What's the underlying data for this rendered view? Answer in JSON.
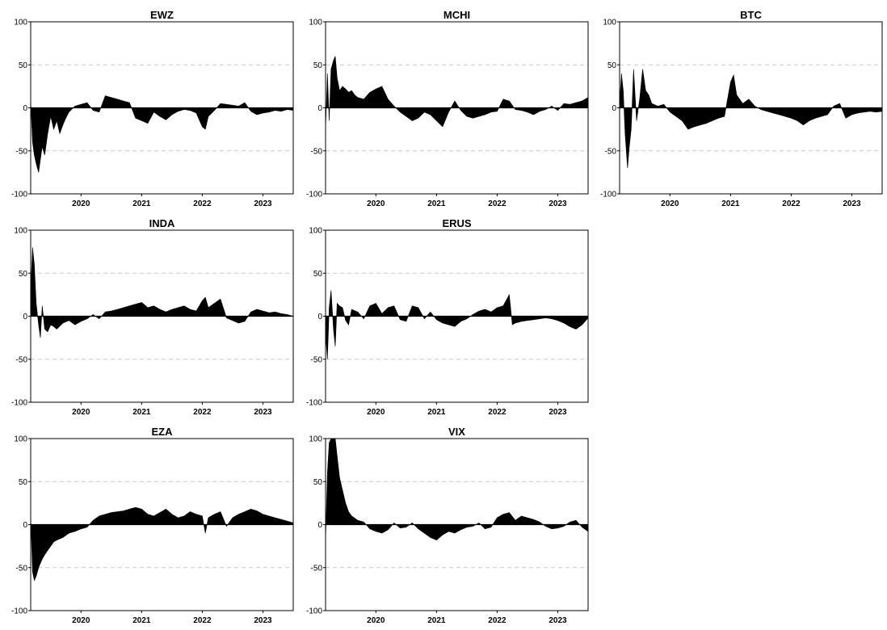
{
  "chart_data": [
    {
      "type": "area",
      "title": "EWZ",
      "ylim": [
        -100,
        100
      ],
      "yticks": [
        "100",
        "50",
        "0",
        "-50",
        "-100"
      ],
      "xticks": [
        "2020",
        "2021",
        "2022",
        "2023"
      ],
      "xrange": [
        2019.17,
        2023.5
      ],
      "grid": "dashed horizontal at ±50",
      "x": [
        2019.17,
        2019.2,
        2019.23,
        2019.26,
        2019.3,
        2019.33,
        2019.36,
        2019.4,
        2019.45,
        2019.5,
        2019.55,
        2019.6,
        2019.65,
        2019.7,
        2019.75,
        2019.8,
        2019.9,
        2020.0,
        2020.1,
        2020.2,
        2020.3,
        2020.4,
        2020.5,
        2020.6,
        2020.7,
        2020.8,
        2020.9,
        2021.0,
        2021.1,
        2021.2,
        2021.3,
        2021.4,
        2021.5,
        2021.6,
        2021.7,
        2021.8,
        2021.9,
        2022.0,
        2022.05,
        2022.1,
        2022.2,
        2022.3,
        2022.4,
        2022.5,
        2022.6,
        2022.7,
        2022.8,
        2022.9,
        2023.0,
        2023.1,
        2023.2,
        2023.3,
        2023.4,
        2023.5
      ],
      "y": [
        8,
        -40,
        -55,
        -65,
        -75,
        -60,
        -45,
        -55,
        -30,
        -10,
        -25,
        -15,
        -30,
        -20,
        -12,
        -5,
        2,
        4,
        6,
        -3,
        -5,
        14,
        12,
        10,
        8,
        6,
        -12,
        -15,
        -18,
        -5,
        -10,
        -14,
        -8,
        -4,
        -2,
        -3,
        -6,
        -22,
        -25,
        -10,
        -3,
        5,
        4,
        3,
        2,
        6,
        -4,
        -8,
        -6,
        -5,
        -3,
        -4,
        -2,
        -3
      ]
    },
    {
      "type": "area",
      "title": "MCHI",
      "ylim": [
        -100,
        100
      ],
      "yticks": [
        "100",
        "50",
        "0",
        "-50",
        "-100"
      ],
      "xticks": [
        "2020",
        "2021",
        "2022",
        "2023"
      ],
      "xrange": [
        2019.17,
        2023.5
      ],
      "grid": "dashed horizontal at ±50",
      "x": [
        2019.17,
        2019.2,
        2019.23,
        2019.26,
        2019.3,
        2019.33,
        2019.36,
        2019.4,
        2019.45,
        2019.5,
        2019.55,
        2019.6,
        2019.65,
        2019.7,
        2019.8,
        2019.9,
        2020.0,
        2020.1,
        2020.2,
        2020.3,
        2020.4,
        2020.5,
        2020.6,
        2020.7,
        2020.8,
        2020.9,
        2021.0,
        2021.1,
        2021.2,
        2021.3,
        2021.4,
        2021.5,
        2021.6,
        2021.7,
        2021.8,
        2021.9,
        2022.0,
        2022.1,
        2022.2,
        2022.3,
        2022.4,
        2022.5,
        2022.6,
        2022.7,
        2022.8,
        2022.9,
        2023.0,
        2023.1,
        2023.2,
        2023.3,
        2023.4,
        2023.5
      ],
      "y": [
        -25,
        40,
        -15,
        45,
        55,
        60,
        35,
        20,
        25,
        22,
        18,
        20,
        15,
        12,
        10,
        18,
        22,
        25,
        10,
        2,
        -5,
        -10,
        -15,
        -12,
        -5,
        -8,
        -15,
        -22,
        -5,
        8,
        -3,
        -10,
        -12,
        -10,
        -8,
        -5,
        -4,
        10,
        8,
        -2,
        -3,
        -5,
        -8,
        -4,
        -2,
        2,
        -3,
        5,
        4,
        6,
        8,
        12
      ]
    },
    {
      "type": "area",
      "title": "BTC",
      "ylim": [
        -100,
        100
      ],
      "yticks": [
        "100",
        "50",
        "0",
        "-50",
        "-100"
      ],
      "xticks": [
        "2020",
        "2021",
        "2022",
        "2023"
      ],
      "xrange": [
        2019.17,
        2023.5
      ],
      "grid": "dashed horizontal at ±50",
      "x": [
        2019.17,
        2019.2,
        2019.23,
        2019.26,
        2019.3,
        2019.33,
        2019.36,
        2019.4,
        2019.45,
        2019.5,
        2019.55,
        2019.6,
        2019.65,
        2019.7,
        2019.8,
        2019.9,
        2020.0,
        2020.1,
        2020.2,
        2020.3,
        2020.4,
        2020.5,
        2020.6,
        2020.7,
        2020.8,
        2020.9,
        2021.0,
        2021.05,
        2021.1,
        2021.2,
        2021.3,
        2021.4,
        2021.5,
        2021.6,
        2021.7,
        2021.8,
        2021.9,
        2022.0,
        2022.1,
        2022.2,
        2022.3,
        2022.4,
        2022.5,
        2022.6,
        2022.7,
        2022.8,
        2022.9,
        2023.0,
        2023.1,
        2023.2,
        2023.3,
        2023.4,
        2023.5
      ],
      "y": [
        5,
        40,
        20,
        -30,
        -70,
        -45,
        -25,
        45,
        -15,
        10,
        45,
        20,
        15,
        5,
        2,
        4,
        -5,
        -10,
        -15,
        -25,
        -22,
        -20,
        -18,
        -15,
        -12,
        -10,
        30,
        38,
        15,
        5,
        10,
        2,
        -2,
        -4,
        -6,
        -8,
        -10,
        -12,
        -15,
        -20,
        -15,
        -12,
        -10,
        -8,
        2,
        5,
        -12,
        -8,
        -6,
        -5,
        -4,
        -5,
        -4
      ]
    },
    {
      "type": "area",
      "title": "INDA",
      "ylim": [
        -100,
        100
      ],
      "yticks": [
        "100",
        "50",
        "0",
        "-50",
        "-100"
      ],
      "xticks": [
        "2020",
        "2021",
        "2022",
        "2023"
      ],
      "xrange": [
        2019.17,
        2023.5
      ],
      "grid": "dashed horizontal at ±50",
      "x": [
        2019.17,
        2019.2,
        2019.23,
        2019.26,
        2019.3,
        2019.33,
        2019.36,
        2019.4,
        2019.45,
        2019.5,
        2019.55,
        2019.6,
        2019.7,
        2019.8,
        2019.9,
        2020.0,
        2020.1,
        2020.2,
        2020.3,
        2020.4,
        2020.5,
        2020.6,
        2020.7,
        2020.8,
        2020.9,
        2021.0,
        2021.1,
        2021.2,
        2021.3,
        2021.4,
        2021.5,
        2021.6,
        2021.7,
        2021.8,
        2021.9,
        2022.0,
        2022.05,
        2022.1,
        2022.2,
        2022.3,
        2022.4,
        2022.5,
        2022.6,
        2022.7,
        2022.8,
        2022.9,
        2023.0,
        2023.1,
        2023.2,
        2023.3,
        2023.4,
        2023.5
      ],
      "y": [
        30,
        80,
        60,
        15,
        -10,
        -25,
        12,
        -15,
        -18,
        -10,
        -12,
        -15,
        -8,
        -5,
        -10,
        -6,
        -3,
        2,
        -3,
        5,
        6,
        8,
        10,
        12,
        14,
        16,
        10,
        12,
        8,
        5,
        8,
        10,
        12,
        8,
        6,
        18,
        22,
        10,
        15,
        20,
        -2,
        -5,
        -8,
        -6,
        5,
        8,
        6,
        4,
        5,
        3,
        2,
        0
      ]
    },
    {
      "type": "area",
      "title": "ERUS",
      "ylim": [
        -100,
        100
      ],
      "yticks": [
        "100",
        "50",
        "0",
        "-50",
        "-100"
      ],
      "xticks": [
        "2020",
        "2021",
        "2022",
        "2023"
      ],
      "xrange": [
        2019.17,
        2023.5
      ],
      "grid": "dashed horizontal at ±50",
      "x": [
        2019.17,
        2019.2,
        2019.23,
        2019.26,
        2019.3,
        2019.33,
        2019.36,
        2019.4,
        2019.45,
        2019.5,
        2019.55,
        2019.6,
        2019.7,
        2019.8,
        2019.9,
        2020.0,
        2020.1,
        2020.2,
        2020.3,
        2020.4,
        2020.5,
        2020.6,
        2020.7,
        2020.8,
        2020.9,
        2021.0,
        2021.1,
        2021.2,
        2021.3,
        2021.4,
        2021.5,
        2021.6,
        2021.7,
        2021.8,
        2021.9,
        2022.0,
        2022.1,
        2022.2,
        2022.25,
        2022.3,
        2022.4,
        2022.5,
        2022.6,
        2022.7,
        2022.8,
        2022.9,
        2023.0,
        2023.1,
        2023.2,
        2023.3,
        2023.4,
        2023.5
      ],
      "y": [
        -20,
        -50,
        10,
        30,
        -15,
        -35,
        15,
        12,
        10,
        -5,
        -10,
        8,
        5,
        -3,
        12,
        15,
        3,
        10,
        12,
        -4,
        -6,
        12,
        10,
        -3,
        5,
        -4,
        -8,
        -10,
        -12,
        -6,
        -3,
        2,
        6,
        8,
        5,
        10,
        12,
        25,
        -10,
        -8,
        -6,
        -5,
        -4,
        -3,
        -2,
        -3,
        -5,
        -8,
        -12,
        -15,
        -10,
        -2
      ]
    },
    {
      "type": "area",
      "title": "EZA",
      "ylim": [
        -100,
        100
      ],
      "yticks": [
        "100",
        "50",
        "0",
        "-50",
        "-100"
      ],
      "xticks": [
        "2020",
        "2021",
        "2022",
        "2023"
      ],
      "xrange": [
        2019.17,
        2023.5
      ],
      "grid": "dashed horizontal at ±50",
      "x": [
        2019.17,
        2019.2,
        2019.23,
        2019.26,
        2019.3,
        2019.33,
        2019.36,
        2019.4,
        2019.45,
        2019.5,
        2019.55,
        2019.6,
        2019.7,
        2019.8,
        2019.9,
        2020.0,
        2020.1,
        2020.2,
        2020.3,
        2020.4,
        2020.5,
        2020.6,
        2020.7,
        2020.8,
        2020.9,
        2021.0,
        2021.1,
        2021.2,
        2021.3,
        2021.4,
        2021.5,
        2021.6,
        2021.7,
        2021.8,
        2021.9,
        2022.0,
        2022.05,
        2022.1,
        2022.2,
        2022.3,
        2022.4,
        2022.5,
        2022.6,
        2022.7,
        2022.8,
        2022.9,
        2023.0,
        2023.1,
        2023.2,
        2023.3,
        2023.4,
        2023.5
      ],
      "y": [
        10,
        -55,
        -65,
        -60,
        -50,
        -45,
        -40,
        -35,
        -30,
        -25,
        -20,
        -18,
        -15,
        -10,
        -8,
        -5,
        -3,
        5,
        10,
        12,
        14,
        15,
        16,
        18,
        20,
        18,
        12,
        10,
        14,
        18,
        12,
        8,
        10,
        15,
        12,
        10,
        -10,
        8,
        12,
        15,
        -2,
        8,
        12,
        15,
        18,
        16,
        12,
        10,
        8,
        6,
        4,
        2
      ]
    },
    {
      "type": "area",
      "title": "VIX",
      "ylim": [
        -100,
        100
      ],
      "yticks": [
        "100",
        "50",
        "0",
        "-50",
        "-100"
      ],
      "xticks": [
        "2020",
        "2021",
        "2022",
        "2023"
      ],
      "xrange": [
        2019.17,
        2023.5
      ],
      "grid": "dashed horizontal at ±50",
      "x": [
        2019.17,
        2019.2,
        2019.23,
        2019.26,
        2019.3,
        2019.33,
        2019.36,
        2019.4,
        2019.45,
        2019.5,
        2019.55,
        2019.6,
        2019.7,
        2019.8,
        2019.9,
        2020.0,
        2020.1,
        2020.2,
        2020.3,
        2020.4,
        2020.5,
        2020.6,
        2020.7,
        2020.8,
        2020.9,
        2021.0,
        2021.1,
        2021.2,
        2021.3,
        2021.4,
        2021.5,
        2021.6,
        2021.7,
        2021.8,
        2021.9,
        2022.0,
        2022.1,
        2022.2,
        2022.3,
        2022.4,
        2022.5,
        2022.6,
        2022.7,
        2022.8,
        2022.9,
        2023.0,
        2023.1,
        2023.2,
        2023.3,
        2023.4,
        2023.5
      ],
      "y": [
        -20,
        60,
        95,
        100,
        100,
        100,
        80,
        55,
        40,
        25,
        15,
        10,
        5,
        3,
        -5,
        -8,
        -10,
        -6,
        2,
        -4,
        -3,
        2,
        -5,
        -10,
        -15,
        -18,
        -12,
        -8,
        -10,
        -6,
        -3,
        -2,
        2,
        -5,
        -3,
        8,
        12,
        14,
        5,
        10,
        8,
        6,
        3,
        -2,
        -5,
        -4,
        -2,
        3,
        5,
        -3,
        -8
      ]
    }
  ]
}
